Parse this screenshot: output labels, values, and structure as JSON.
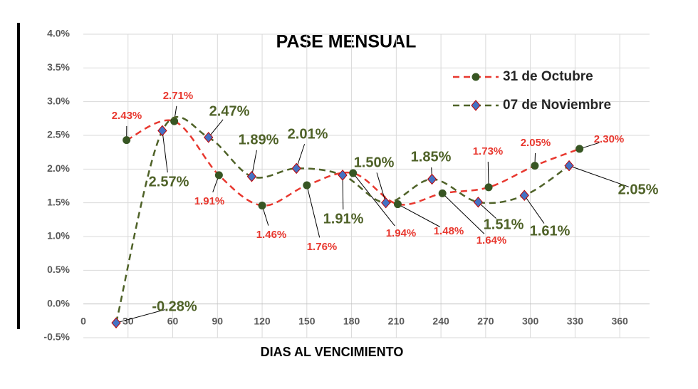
{
  "chart_data": {
    "type": "line",
    "title": "PASE MENSUAL",
    "x_label": "DIAS AL VENCIMIENTO",
    "xlim": [
      0,
      380
    ],
    "xticks": [
      0,
      30,
      60,
      90,
      120,
      150,
      180,
      210,
      240,
      270,
      300,
      330,
      360
    ],
    "ylim": [
      -0.5,
      4.0
    ],
    "yticks": [
      {
        "value": -0.5,
        "label": "-0.5%"
      },
      {
        "value": 0,
        "label": "0.0%"
      },
      {
        "value": 0.5,
        "label": "0.5%"
      },
      {
        "value": 1.0,
        "label": "1.0%"
      },
      {
        "value": 1.5,
        "label": "1.5%"
      },
      {
        "value": 2.0,
        "label": "2.0%"
      },
      {
        "value": 2.5,
        "label": "2.5%"
      },
      {
        "value": 3.0,
        "label": "3.0%"
      },
      {
        "value": 3.5,
        "label": "3.5%"
      },
      {
        "value": 4.0,
        "label": "4.0%"
      }
    ],
    "grid": true,
    "legend": "upper right",
    "series": [
      {
        "name": "31 de Octubre",
        "color": "#e8382f",
        "marker_color": "#375623",
        "marker": "circle",
        "x": [
          29,
          61,
          91,
          120,
          150,
          181,
          211,
          241,
          272,
          303,
          333
        ],
        "values": [
          2.43,
          2.71,
          1.91,
          1.46,
          1.76,
          1.94,
          1.48,
          1.64,
          1.73,
          2.05,
          2.3
        ],
        "value_labels": [
          "2.43%",
          "2.71%",
          "1.91%",
          "1.46%",
          "1.76%",
          "1.94%",
          "1.48%",
          "1.64%",
          "1.73%",
          "2.05%",
          "2.30%"
        ]
      },
      {
        "name": "07 de Noviembre",
        "color": "#4f6228",
        "marker_color": "#4472c4",
        "marker": "diamond",
        "x": [
          22,
          53,
          84,
          113,
          143,
          174,
          203,
          234,
          265,
          296,
          326
        ],
        "values": [
          -0.28,
          2.57,
          2.47,
          1.89,
          2.01,
          1.91,
          1.5,
          1.85,
          1.51,
          1.61,
          2.05
        ],
        "value_labels": [
          "-0.28%",
          "2.57%",
          "2.47%",
          "1.89%",
          "2.01%",
          "1.91%",
          "1.50%",
          "1.85%",
          "1.51%",
          "1.61%",
          "2.05%"
        ]
      }
    ]
  }
}
